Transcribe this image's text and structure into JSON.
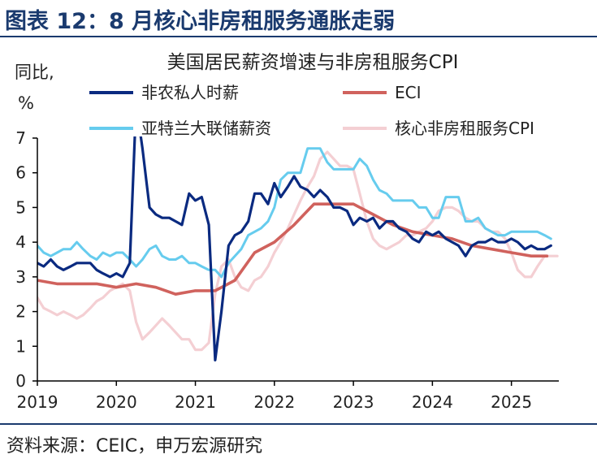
{
  "figure": {
    "title": "图表 12：8 月核心非房租服务通胀走弱",
    "source": "资料来源：CEIC，申万宏源研究"
  },
  "colors": {
    "heading": "#1a3a6e",
    "axis": "#000000"
  },
  "chart_data": {
    "type": "line",
    "title": "美国居民薪资增速与非房租服务CPI",
    "ylabel_line1": "同比,",
    "ylabel_line2": "%",
    "ylim": [
      0,
      7
    ],
    "yticks": [
      "0",
      "1",
      "2",
      "3",
      "4",
      "5",
      "6",
      "7"
    ],
    "xlim": [
      2019.0,
      2025.6
    ],
    "xticks": [
      "2019",
      "2020",
      "2021",
      "2022",
      "2023",
      "2024",
      "2025"
    ],
    "grid": false,
    "legend_position": "top",
    "series": [
      {
        "name": "非农私人时薪",
        "color": "#0a2a80",
        "width": 3.2,
        "points": [
          [
            2019.0,
            3.4
          ],
          [
            2019.08,
            3.3
          ],
          [
            2019.17,
            3.5
          ],
          [
            2019.25,
            3.3
          ],
          [
            2019.33,
            3.2
          ],
          [
            2019.42,
            3.3
          ],
          [
            2019.5,
            3.4
          ],
          [
            2019.58,
            3.4
          ],
          [
            2019.67,
            3.4
          ],
          [
            2019.75,
            3.2
          ],
          [
            2019.83,
            3.1
          ],
          [
            2019.92,
            3.0
          ],
          [
            2020.0,
            3.1
          ],
          [
            2020.08,
            3.0
          ],
          [
            2020.17,
            3.4
          ],
          [
            2020.25,
            8.0
          ],
          [
            2020.33,
            6.7
          ],
          [
            2020.42,
            5.0
          ],
          [
            2020.5,
            4.8
          ],
          [
            2020.58,
            4.7
          ],
          [
            2020.67,
            4.7
          ],
          [
            2020.75,
            4.6
          ],
          [
            2020.83,
            4.5
          ],
          [
            2020.92,
            5.4
          ],
          [
            2021.0,
            5.2
          ],
          [
            2021.08,
            5.3
          ],
          [
            2021.17,
            4.5
          ],
          [
            2021.25,
            0.6
          ],
          [
            2021.33,
            2.0
          ],
          [
            2021.42,
            3.9
          ],
          [
            2021.5,
            4.2
          ],
          [
            2021.58,
            4.3
          ],
          [
            2021.67,
            4.6
          ],
          [
            2021.75,
            5.4
          ],
          [
            2021.83,
            5.4
          ],
          [
            2021.92,
            5.1
          ],
          [
            2022.0,
            5.7
          ],
          [
            2022.08,
            5.3
          ],
          [
            2022.17,
            5.6
          ],
          [
            2022.25,
            5.9
          ],
          [
            2022.33,
            5.6
          ],
          [
            2022.42,
            5.5
          ],
          [
            2022.5,
            5.3
          ],
          [
            2022.58,
            5.5
          ],
          [
            2022.67,
            5.3
          ],
          [
            2022.75,
            5.0
          ],
          [
            2022.83,
            5.0
          ],
          [
            2022.92,
            4.9
          ],
          [
            2023.0,
            4.5
          ],
          [
            2023.08,
            4.7
          ],
          [
            2023.17,
            4.6
          ],
          [
            2023.25,
            4.7
          ],
          [
            2023.33,
            4.4
          ],
          [
            2023.42,
            4.6
          ],
          [
            2023.5,
            4.6
          ],
          [
            2023.58,
            4.4
          ],
          [
            2023.67,
            4.3
          ],
          [
            2023.75,
            4.1
          ],
          [
            2023.83,
            4.0
          ],
          [
            2023.92,
            4.3
          ],
          [
            2024.0,
            4.2
          ],
          [
            2024.08,
            4.3
          ],
          [
            2024.17,
            4.1
          ],
          [
            2024.25,
            4.0
          ],
          [
            2024.33,
            3.9
          ],
          [
            2024.42,
            3.6
          ],
          [
            2024.5,
            3.9
          ],
          [
            2024.58,
            4.0
          ],
          [
            2024.67,
            4.0
          ],
          [
            2024.75,
            4.1
          ],
          [
            2024.83,
            4.0
          ],
          [
            2024.92,
            4.0
          ],
          [
            2025.0,
            4.1
          ],
          [
            2025.08,
            4.0
          ],
          [
            2025.17,
            3.8
          ],
          [
            2025.25,
            3.9
          ],
          [
            2025.33,
            3.8
          ],
          [
            2025.42,
            3.8
          ],
          [
            2025.5,
            3.9
          ]
        ]
      },
      {
        "name": "ECI",
        "color": "#d0625d",
        "width": 3.6,
        "points": [
          [
            2019.0,
            2.9
          ],
          [
            2019.25,
            2.8
          ],
          [
            2019.5,
            2.8
          ],
          [
            2019.75,
            2.8
          ],
          [
            2020.0,
            2.7
          ],
          [
            2020.25,
            2.8
          ],
          [
            2020.5,
            2.7
          ],
          [
            2020.75,
            2.5
          ],
          [
            2021.0,
            2.6
          ],
          [
            2021.25,
            2.6
          ],
          [
            2021.5,
            2.9
          ],
          [
            2021.75,
            3.7
          ],
          [
            2022.0,
            4.0
          ],
          [
            2022.25,
            4.5
          ],
          [
            2022.5,
            5.1
          ],
          [
            2022.75,
            5.1
          ],
          [
            2023.0,
            5.1
          ],
          [
            2023.25,
            4.8
          ],
          [
            2023.5,
            4.5
          ],
          [
            2023.75,
            4.3
          ],
          [
            2024.0,
            4.2
          ],
          [
            2024.25,
            4.1
          ],
          [
            2024.5,
            3.9
          ],
          [
            2024.75,
            3.8
          ],
          [
            2025.0,
            3.7
          ],
          [
            2025.25,
            3.6
          ],
          [
            2025.45,
            3.6
          ]
        ]
      },
      {
        "name": "亚特兰大联储薪资",
        "color": "#66ccee",
        "width": 3.0,
        "points": [
          [
            2019.0,
            3.9
          ],
          [
            2019.08,
            3.7
          ],
          [
            2019.17,
            3.6
          ],
          [
            2019.25,
            3.7
          ],
          [
            2019.33,
            3.8
          ],
          [
            2019.42,
            3.8
          ],
          [
            2019.5,
            4.0
          ],
          [
            2019.58,
            3.8
          ],
          [
            2019.67,
            3.6
          ],
          [
            2019.75,
            3.5
          ],
          [
            2019.83,
            3.7
          ],
          [
            2019.92,
            3.6
          ],
          [
            2020.0,
            3.7
          ],
          [
            2020.08,
            3.7
          ],
          [
            2020.17,
            3.5
          ],
          [
            2020.25,
            3.3
          ],
          [
            2020.33,
            3.5
          ],
          [
            2020.42,
            3.8
          ],
          [
            2020.5,
            3.9
          ],
          [
            2020.58,
            3.6
          ],
          [
            2020.67,
            3.5
          ],
          [
            2020.75,
            3.5
          ],
          [
            2020.83,
            3.6
          ],
          [
            2020.92,
            3.4
          ],
          [
            2021.0,
            3.4
          ],
          [
            2021.08,
            3.3
          ],
          [
            2021.17,
            3.2
          ],
          [
            2021.25,
            3.2
          ],
          [
            2021.33,
            3.0
          ],
          [
            2021.42,
            3.4
          ],
          [
            2021.5,
            3.6
          ],
          [
            2021.58,
            3.8
          ],
          [
            2021.67,
            4.2
          ],
          [
            2021.75,
            4.3
          ],
          [
            2021.83,
            4.4
          ],
          [
            2021.92,
            4.6
          ],
          [
            2022.0,
            5.0
          ],
          [
            2022.08,
            5.8
          ],
          [
            2022.17,
            6.0
          ],
          [
            2022.25,
            6.0
          ],
          [
            2022.33,
            6.0
          ],
          [
            2022.42,
            6.7
          ],
          [
            2022.5,
            6.7
          ],
          [
            2022.58,
            6.7
          ],
          [
            2022.67,
            6.3
          ],
          [
            2022.75,
            6.1
          ],
          [
            2022.83,
            6.1
          ],
          [
            2022.92,
            6.1
          ],
          [
            2023.0,
            6.1
          ],
          [
            2023.08,
            6.4
          ],
          [
            2023.17,
            6.2
          ],
          [
            2023.25,
            5.8
          ],
          [
            2023.33,
            5.5
          ],
          [
            2023.42,
            5.4
          ],
          [
            2023.5,
            5.2
          ],
          [
            2023.58,
            5.2
          ],
          [
            2023.67,
            5.2
          ],
          [
            2023.75,
            5.2
          ],
          [
            2023.83,
            5.0
          ],
          [
            2023.92,
            5.0
          ],
          [
            2024.0,
            4.7
          ],
          [
            2024.08,
            4.7
          ],
          [
            2024.17,
            5.3
          ],
          [
            2024.25,
            5.3
          ],
          [
            2024.33,
            5.3
          ],
          [
            2024.42,
            4.6
          ],
          [
            2024.5,
            4.6
          ],
          [
            2024.58,
            4.7
          ],
          [
            2024.67,
            4.4
          ],
          [
            2024.75,
            4.3
          ],
          [
            2024.83,
            4.2
          ],
          [
            2024.92,
            4.2
          ],
          [
            2025.0,
            4.3
          ],
          [
            2025.08,
            4.3
          ],
          [
            2025.17,
            4.3
          ],
          [
            2025.25,
            4.3
          ],
          [
            2025.33,
            4.3
          ],
          [
            2025.42,
            4.2
          ],
          [
            2025.5,
            4.1
          ]
        ]
      },
      {
        "name": "核心非房租服务CPI",
        "color": "#f4cfd3",
        "width": 3.2,
        "points": [
          [
            2019.0,
            2.4
          ],
          [
            2019.08,
            2.1
          ],
          [
            2019.17,
            2.0
          ],
          [
            2019.25,
            1.9
          ],
          [
            2019.33,
            2.0
          ],
          [
            2019.42,
            1.9
          ],
          [
            2019.5,
            1.8
          ],
          [
            2019.58,
            1.9
          ],
          [
            2019.67,
            2.1
          ],
          [
            2019.75,
            2.3
          ],
          [
            2019.83,
            2.4
          ],
          [
            2019.92,
            2.6
          ],
          [
            2020.0,
            2.7
          ],
          [
            2020.08,
            2.8
          ],
          [
            2020.17,
            2.6
          ],
          [
            2020.25,
            1.7
          ],
          [
            2020.33,
            1.2
          ],
          [
            2020.42,
            1.4
          ],
          [
            2020.5,
            1.6
          ],
          [
            2020.58,
            1.8
          ],
          [
            2020.67,
            1.6
          ],
          [
            2020.75,
            1.4
          ],
          [
            2020.83,
            1.2
          ],
          [
            2020.92,
            1.2
          ],
          [
            2021.0,
            0.9
          ],
          [
            2021.08,
            0.9
          ],
          [
            2021.17,
            1.1
          ],
          [
            2021.25,
            2.5
          ],
          [
            2021.33,
            3.3
          ],
          [
            2021.42,
            3.5
          ],
          [
            2021.5,
            3.0
          ],
          [
            2021.58,
            2.7
          ],
          [
            2021.67,
            2.6
          ],
          [
            2021.75,
            2.9
          ],
          [
            2021.83,
            3.0
          ],
          [
            2021.92,
            3.3
          ],
          [
            2022.0,
            3.7
          ],
          [
            2022.08,
            4.0
          ],
          [
            2022.17,
            4.4
          ],
          [
            2022.25,
            4.8
          ],
          [
            2022.33,
            5.2
          ],
          [
            2022.42,
            5.6
          ],
          [
            2022.5,
            5.9
          ],
          [
            2022.58,
            6.4
          ],
          [
            2022.67,
            6.6
          ],
          [
            2022.75,
            6.4
          ],
          [
            2022.83,
            6.2
          ],
          [
            2022.92,
            6.2
          ],
          [
            2023.0,
            6.1
          ],
          [
            2023.08,
            5.4
          ],
          [
            2023.17,
            4.6
          ],
          [
            2023.25,
            4.1
          ],
          [
            2023.33,
            3.9
          ],
          [
            2023.42,
            3.8
          ],
          [
            2023.5,
            3.9
          ],
          [
            2023.58,
            4.0
          ],
          [
            2023.67,
            4.2
          ],
          [
            2023.75,
            4.2
          ],
          [
            2023.83,
            4.3
          ],
          [
            2023.92,
            4.4
          ],
          [
            2024.0,
            4.6
          ],
          [
            2024.08,
            4.9
          ],
          [
            2024.17,
            5.0
          ],
          [
            2024.25,
            5.0
          ],
          [
            2024.33,
            4.9
          ],
          [
            2024.42,
            4.7
          ],
          [
            2024.5,
            4.6
          ],
          [
            2024.58,
            4.6
          ],
          [
            2024.67,
            4.4
          ],
          [
            2024.75,
            4.3
          ],
          [
            2024.83,
            4.3
          ],
          [
            2024.92,
            4.1
          ],
          [
            2025.0,
            3.7
          ],
          [
            2025.08,
            3.2
          ],
          [
            2025.17,
            3.0
          ],
          [
            2025.25,
            3.0
          ],
          [
            2025.33,
            3.3
          ],
          [
            2025.42,
            3.6
          ],
          [
            2025.5,
            3.6
          ],
          [
            2025.58,
            3.6
          ]
        ]
      }
    ]
  }
}
